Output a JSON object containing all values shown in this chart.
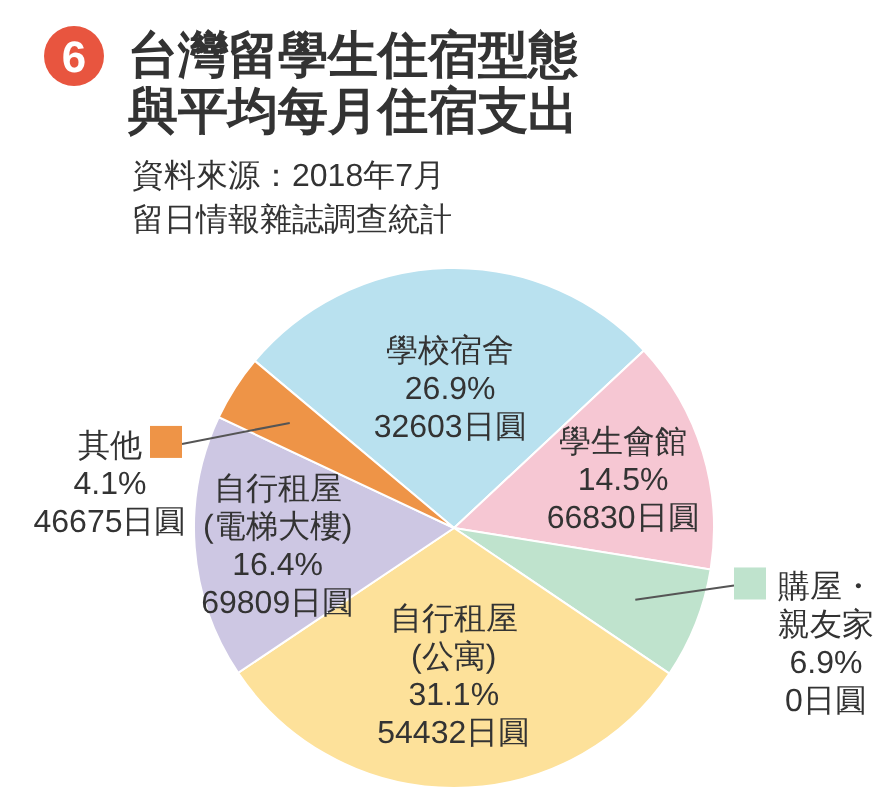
{
  "chart_data": {
    "type": "pie",
    "title": "台灣留學生住宿型態與平均每月住宿支出",
    "subtitle": "資料來源：2018年7月留日情報雜誌調查統計",
    "annotations": [
      "6"
    ],
    "categories": [
      "學校宿舍",
      "學生會館",
      "購屋・親友家",
      "自行租屋\n(公寓)",
      "自行租屋\n(電梯大樓)",
      "其他"
    ],
    "values": [
      26.9,
      14.5,
      6.9,
      31.1,
      16.4,
      4.1
    ],
    "value_labels": [
      "26.9%\n32603日圓",
      "14.5%\n66830日圓",
      "6.9%\n0日圓",
      "31.1%\n54432日圓",
      "16.4%\n69809日圓",
      "4.1%\n46675日圓"
    ],
    "colors": [
      "#b9e1ef",
      "#f6c7d3",
      "#bfe3cd",
      "#fde19a",
      "#cdc7e3",
      "#ee9447"
    ]
  }
}
